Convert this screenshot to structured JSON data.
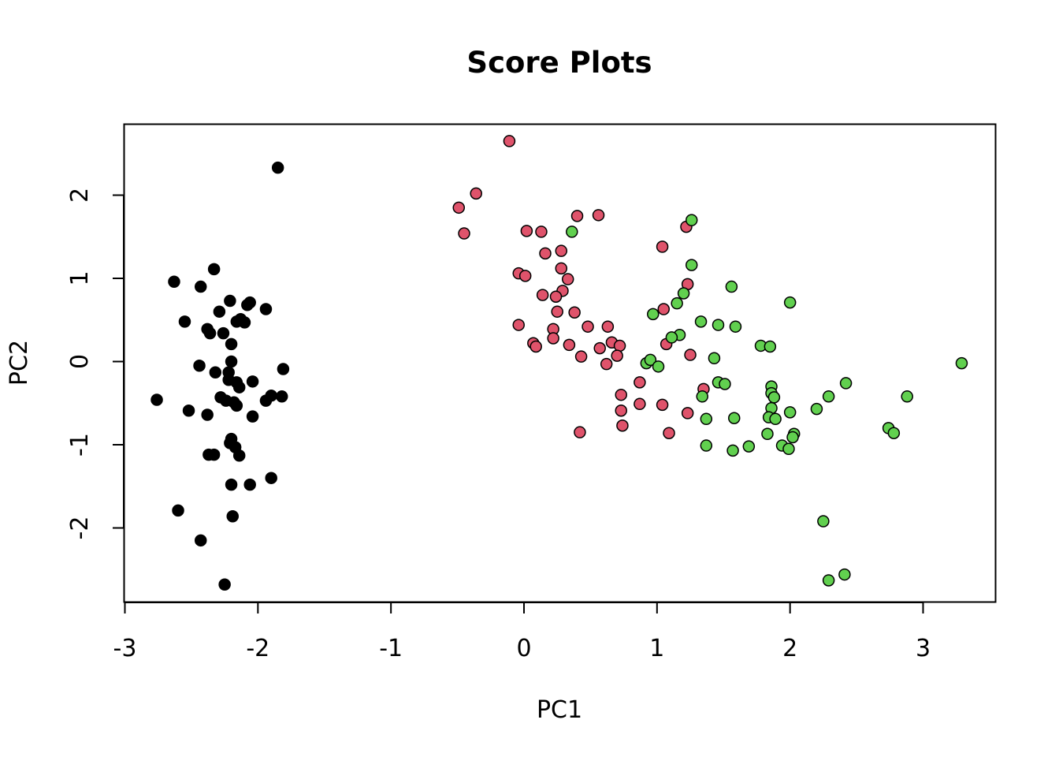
{
  "chart_data": {
    "type": "scatter",
    "title": "Score Plots",
    "xlabel": "PC1",
    "ylabel": "PC2",
    "xlim": [
      -3,
      3.55
    ],
    "ylim": [
      -2.87,
      2.87
    ],
    "xticks": [
      -3,
      -2,
      -1,
      0,
      1,
      2,
      3
    ],
    "yticks": [
      -2,
      -1,
      0,
      1,
      2
    ],
    "xtick_labels": [
      "-3",
      "-2",
      "-1",
      "0",
      "1",
      "2",
      "3"
    ],
    "ytick_labels": [
      "-2",
      "-1",
      "0",
      "1",
      "2"
    ],
    "grid": false,
    "legend": "none",
    "series": [
      {
        "color": "#000000",
        "fill": "#000000",
        "points": [
          [
            -1.85,
            2.33
          ],
          [
            -2.33,
            1.11
          ],
          [
            -2.63,
            0.96
          ],
          [
            -2.43,
            0.9
          ],
          [
            -2.21,
            0.73
          ],
          [
            -2.06,
            0.71
          ],
          [
            -2.08,
            0.68
          ],
          [
            -1.94,
            0.63
          ],
          [
            -2.29,
            0.6
          ],
          [
            -2.55,
            0.48
          ],
          [
            -2.16,
            0.48
          ],
          [
            -2.13,
            0.51
          ],
          [
            -2.1,
            0.47
          ],
          [
            -2.38,
            0.39
          ],
          [
            -2.36,
            0.34
          ],
          [
            -2.26,
            0.34
          ],
          [
            -2.2,
            0.21
          ],
          [
            -2.44,
            -0.05
          ],
          [
            -2.2,
            0.0
          ],
          [
            -2.32,
            -0.13
          ],
          [
            -2.22,
            -0.13
          ],
          [
            -2.22,
            -0.22
          ],
          [
            -2.16,
            -0.25
          ],
          [
            -2.14,
            -0.31
          ],
          [
            -2.04,
            -0.24
          ],
          [
            -1.81,
            -0.09
          ],
          [
            -1.9,
            -0.41
          ],
          [
            -1.94,
            -0.47
          ],
          [
            -1.82,
            -0.42
          ],
          [
            -2.76,
            -0.46
          ],
          [
            -2.28,
            -0.43
          ],
          [
            -2.24,
            -0.47
          ],
          [
            -2.18,
            -0.49
          ],
          [
            -2.16,
            -0.53
          ],
          [
            -2.52,
            -0.59
          ],
          [
            -2.38,
            -0.64
          ],
          [
            -2.04,
            -0.66
          ],
          [
            -2.2,
            -0.93
          ],
          [
            -2.21,
            -0.98
          ],
          [
            -2.17,
            -1.03
          ],
          [
            -2.14,
            -1.13
          ],
          [
            -2.37,
            -1.12
          ],
          [
            -2.33,
            -1.12
          ],
          [
            -1.9,
            -1.4
          ],
          [
            -2.2,
            -1.48
          ],
          [
            -2.06,
            -1.48
          ],
          [
            -2.6,
            -1.79
          ],
          [
            -2.19,
            -1.86
          ],
          [
            -2.43,
            -2.15
          ],
          [
            -2.25,
            -2.68
          ]
        ]
      },
      {
        "color": "#000000",
        "fill": "#DF536B",
        "points": [
          [
            -0.11,
            2.65
          ],
          [
            -0.36,
            2.02
          ],
          [
            -0.49,
            1.85
          ],
          [
            -0.45,
            1.54
          ],
          [
            0.4,
            1.75
          ],
          [
            0.56,
            1.76
          ],
          [
            0.02,
            1.57
          ],
          [
            0.13,
            1.56
          ],
          [
            0.16,
            1.3
          ],
          [
            0.28,
            1.33
          ],
          [
            0.28,
            1.12
          ],
          [
            -0.04,
            1.06
          ],
          [
            0.01,
            1.03
          ],
          [
            0.33,
            0.99
          ],
          [
            1.04,
            1.38
          ],
          [
            1.22,
            1.62
          ],
          [
            1.23,
            0.93
          ],
          [
            0.29,
            0.85
          ],
          [
            0.14,
            0.8
          ],
          [
            0.24,
            0.78
          ],
          [
            0.38,
            0.59
          ],
          [
            0.25,
            0.6
          ],
          [
            -0.04,
            0.44
          ],
          [
            0.22,
            0.39
          ],
          [
            0.48,
            0.42
          ],
          [
            0.63,
            0.42
          ],
          [
            0.22,
            0.28
          ],
          [
            0.07,
            0.22
          ],
          [
            0.09,
            0.18
          ],
          [
            0.34,
            0.2
          ],
          [
            0.66,
            0.23
          ],
          [
            0.72,
            0.19
          ],
          [
            0.57,
            0.16
          ],
          [
            1.07,
            0.21
          ],
          [
            1.05,
            0.63
          ],
          [
            0.43,
            0.06
          ],
          [
            0.7,
            0.07
          ],
          [
            0.62,
            -0.03
          ],
          [
            1.25,
            0.08
          ],
          [
            1.35,
            -0.33
          ],
          [
            0.87,
            -0.25
          ],
          [
            0.73,
            -0.4
          ],
          [
            0.87,
            -0.51
          ],
          [
            1.04,
            -0.52
          ],
          [
            0.73,
            -0.59
          ],
          [
            1.23,
            -0.62
          ],
          [
            0.74,
            -0.77
          ],
          [
            0.42,
            -0.85
          ],
          [
            1.09,
            -0.86
          ]
        ]
      },
      {
        "color": "#000000",
        "fill": "#61D04F",
        "points": [
          [
            0.36,
            1.56
          ],
          [
            1.26,
            1.7
          ],
          [
            1.26,
            1.16
          ],
          [
            1.56,
            0.9
          ],
          [
            1.2,
            0.82
          ],
          [
            1.15,
            0.7
          ],
          [
            2.0,
            0.71
          ],
          [
            0.97,
            0.57
          ],
          [
            1.33,
            0.48
          ],
          [
            1.46,
            0.44
          ],
          [
            1.59,
            0.42
          ],
          [
            1.17,
            0.32
          ],
          [
            1.11,
            0.29
          ],
          [
            1.78,
            0.19
          ],
          [
            1.85,
            0.18
          ],
          [
            1.43,
            0.04
          ],
          [
            0.92,
            -0.02
          ],
          [
            0.95,
            0.02
          ],
          [
            1.01,
            -0.06
          ],
          [
            3.29,
            -0.02
          ],
          [
            1.46,
            -0.25
          ],
          [
            1.51,
            -0.27
          ],
          [
            1.86,
            -0.3
          ],
          [
            1.86,
            -0.38
          ],
          [
            1.88,
            -0.43
          ],
          [
            2.42,
            -0.26
          ],
          [
            2.29,
            -0.42
          ],
          [
            2.88,
            -0.42
          ],
          [
            1.34,
            -0.42
          ],
          [
            1.86,
            -0.56
          ],
          [
            2.2,
            -0.57
          ],
          [
            2.0,
            -0.61
          ],
          [
            1.37,
            -0.69
          ],
          [
            1.58,
            -0.68
          ],
          [
            1.84,
            -0.67
          ],
          [
            1.89,
            -0.69
          ],
          [
            2.03,
            -0.87
          ],
          [
            1.83,
            -0.87
          ],
          [
            2.02,
            -0.91
          ],
          [
            1.94,
            -1.01
          ],
          [
            1.99,
            -1.05
          ],
          [
            1.37,
            -1.01
          ],
          [
            1.69,
            -1.02
          ],
          [
            1.57,
            -1.07
          ],
          [
            2.74,
            -0.8
          ],
          [
            2.78,
            -0.86
          ],
          [
            2.25,
            -1.92
          ],
          [
            2.41,
            -2.56
          ],
          [
            2.29,
            -2.63
          ]
        ]
      }
    ]
  }
}
